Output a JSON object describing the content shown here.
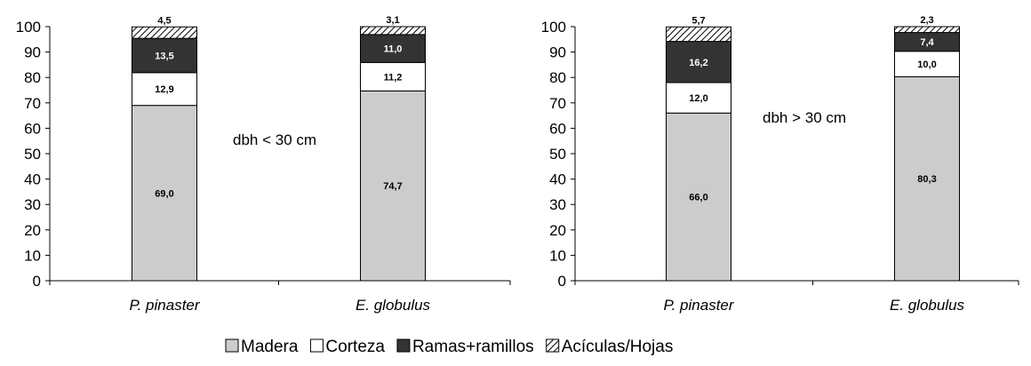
{
  "legend": {
    "items": [
      {
        "label": "Madera",
        "color": "#cccccc",
        "pattern": "solid"
      },
      {
        "label": "Corteza",
        "color": "#ffffff",
        "pattern": "solid"
      },
      {
        "label": "Ramas+ramillos",
        "color": "#333333",
        "pattern": "solid"
      },
      {
        "label": "Acículas/Hojas",
        "color": "#ffffff",
        "pattern": "hatch"
      }
    ]
  },
  "chart_data": [
    {
      "type": "bar",
      "stacked": true,
      "annotation": "dbh < 30 cm",
      "categories": [
        "P. pinaster",
        "E. globulus"
      ],
      "ylim": [
        0,
        100
      ],
      "yticks": [
        0,
        10,
        20,
        30,
        40,
        50,
        60,
        70,
        80,
        90,
        100
      ],
      "grid": false,
      "series": [
        {
          "name": "Madera",
          "values": [
            69.0,
            74.7
          ],
          "labels": [
            "69,0",
            "74,7"
          ]
        },
        {
          "name": "Corteza",
          "values": [
            12.9,
            11.2
          ],
          "labels": [
            "12,9",
            "11,2"
          ]
        },
        {
          "name": "Ramas+ramillos",
          "values": [
            13.5,
            11.0
          ],
          "labels": [
            "13,5",
            "11,0"
          ]
        },
        {
          "name": "Acículas/Hojas",
          "values": [
            4.5,
            3.1
          ],
          "labels": [
            "4,5",
            "3,1"
          ]
        }
      ]
    },
    {
      "type": "bar",
      "stacked": true,
      "annotation": "dbh > 30 cm",
      "categories": [
        "P. pinaster",
        "E. globulus"
      ],
      "ylim": [
        0,
        100
      ],
      "yticks": [
        0,
        10,
        20,
        30,
        40,
        50,
        60,
        70,
        80,
        90,
        100
      ],
      "grid": false,
      "series": [
        {
          "name": "Madera",
          "values": [
            66.0,
            80.3
          ],
          "labels": [
            "66,0",
            "80,3"
          ]
        },
        {
          "name": "Corteza",
          "values": [
            12.0,
            10.0
          ],
          "labels": [
            "12,0",
            "10,0"
          ]
        },
        {
          "name": "Ramas+ramillos",
          "values": [
            16.2,
            7.4
          ],
          "labels": [
            "16,2",
            "7,4"
          ]
        },
        {
          "name": "Acículas/Hojas",
          "values": [
            5.7,
            2.3
          ],
          "labels": [
            "5,7",
            "2,3"
          ]
        }
      ]
    }
  ]
}
